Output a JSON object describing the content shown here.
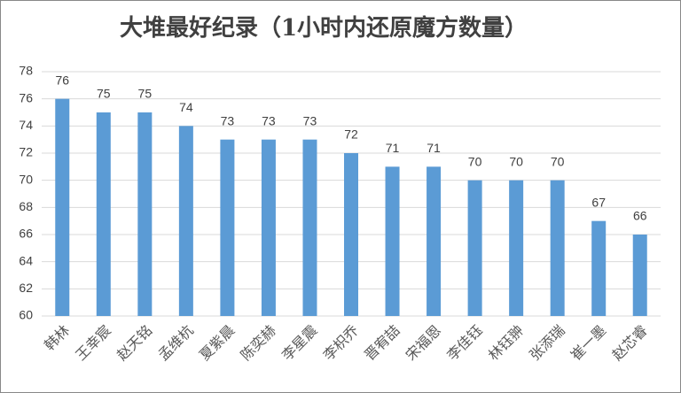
{
  "chart_data": {
    "type": "bar",
    "title": "大堆最好纪录（1小时内还原魔方数量）",
    "categories": [
      "韩林",
      "王幸宸",
      "赵天铭",
      "孟维杭",
      "夏紫晨",
      "陈奕赫",
      "李星震",
      "李枳乔",
      "晋宥喆",
      "宋福恩",
      "李佳钰",
      "林钰翀",
      "张添瑞",
      "崔一墨",
      "赵芯睿"
    ],
    "values": [
      76,
      75,
      75,
      74,
      73,
      73,
      73,
      72,
      71,
      71,
      70,
      70,
      70,
      67,
      66
    ],
    "color": "#5b9bd5",
    "ylim": [
      60,
      78
    ],
    "yticks": [
      60,
      62,
      64,
      66,
      68,
      70,
      72,
      74,
      76,
      78
    ],
    "grid": true
  }
}
